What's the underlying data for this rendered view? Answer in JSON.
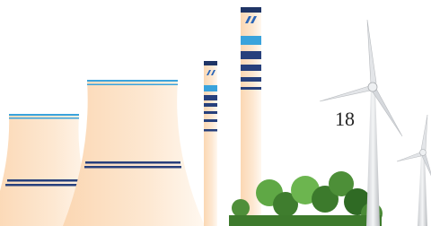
{
  "page_number": "18"
}
